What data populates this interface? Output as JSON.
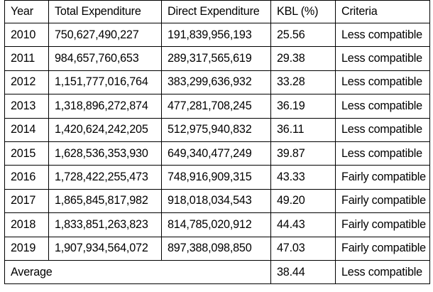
{
  "table": {
    "headers": [
      "Year",
      "Total Expenditure",
      "Direct Expenditure",
      "KBL (%)",
      "Criteria"
    ],
    "rows": [
      [
        "2010",
        "750,627,490,227",
        "191,839,956,193",
        "25.56",
        "Less compatible"
      ],
      [
        "2011",
        "984,657,760,653",
        "289,317,565,619",
        "29.38",
        "Less compatible"
      ],
      [
        "2012",
        "1,151,777,016,764",
        "383,299,636,932",
        "33.28",
        "Less compatible"
      ],
      [
        "2013",
        "1,318,896,272,874",
        "477,281,708,245",
        "36.19",
        "Less compatible"
      ],
      [
        "2014",
        "1,420,624,242,205",
        "512,975,940,832",
        "36.11",
        "Less compatible"
      ],
      [
        "2015",
        "1,628,536,353,930",
        "649,340,477,249",
        "39.87",
        "Less compatible"
      ],
      [
        "2016",
        "1,728,422,255,473",
        "748,916,909,315",
        "43.33",
        "Fairly compatible"
      ],
      [
        "2017",
        "1,865,845,817,982",
        "918,018,034,543",
        "49.20",
        "Fairly compatible"
      ],
      [
        "2018",
        "1,833,851,263,823",
        "814,785,020,912",
        "44.43",
        "Fairly compatible"
      ],
      [
        "2019",
        "1,907,934,564,072",
        "897,388,098,850",
        "47.03",
        "Fairly compatible"
      ]
    ],
    "average": {
      "label": "Average",
      "kbl": "38.44",
      "criteria": "Less compatible"
    }
  }
}
